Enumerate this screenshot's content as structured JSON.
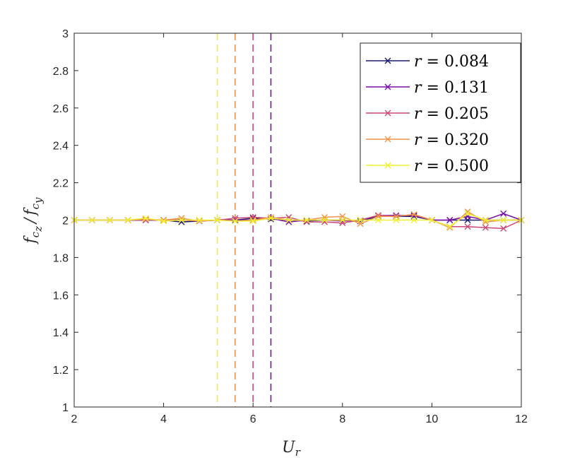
{
  "chart_data": {
    "type": "line",
    "xlabel": "U_r",
    "ylabel": "f_{c_z} / f_{c_y}",
    "xlabel_main": "U",
    "xlabel_sub": "r",
    "ylabel_f1": "f",
    "ylabel_c1": "c",
    "ylabel_s1": "z",
    "ylabel_slash": "/",
    "ylabel_f2": "f",
    "ylabel_c2": "c",
    "ylabel_s2": "y",
    "xlim": [
      2,
      12
    ],
    "ylim": [
      1,
      3
    ],
    "xticks": [
      "2",
      "4",
      "6",
      "8",
      "10",
      "12"
    ],
    "yticks": [
      "1",
      "1.2",
      "1.4",
      "1.6",
      "1.8",
      "2",
      "2.2",
      "2.4",
      "2.6",
      "2.8",
      "3"
    ],
    "legend_position": "top-right",
    "marker": "x",
    "x": [
      2.0,
      2.4,
      2.8,
      3.2,
      3.6,
      4.0,
      4.4,
      4.8,
      5.2,
      5.6,
      6.0,
      6.4,
      6.8,
      7.2,
      7.6,
      8.0,
      8.4,
      8.8,
      9.2,
      9.6,
      10.0,
      10.4,
      10.8,
      11.2,
      11.6,
      12.0
    ],
    "series": [
      {
        "name": "r = 0.084",
        "var": "r",
        "eq": " = ",
        "num": "0.084",
        "color": "#1a1a6e",
        "critical_ur": null,
        "values": [
          2.0,
          2.0,
          2.0,
          2.0,
          2.0,
          2.0,
          1.99,
          1.995,
          2.0,
          2.0,
          2.01,
          2.005,
          2.0,
          1.995,
          2.0,
          2.0,
          1.995,
          2.02,
          2.02,
          2.02,
          2.0,
          2.0,
          2.0,
          2.0,
          2.0,
          2.0
        ]
      },
      {
        "name": "r = 0.131",
        "var": "r",
        "eq": " = ",
        "num": "0.131",
        "color": "#7a0fa8",
        "critical_ur": 6.4,
        "values": [
          2.0,
          2.0,
          2.0,
          2.0,
          2.0,
          2.0,
          2.0,
          1.995,
          2.0,
          2.0,
          2.0,
          2.01,
          1.99,
          2.0,
          2.0,
          1.995,
          2.0,
          2.025,
          2.025,
          2.025,
          2.0,
          2.0,
          2.02,
          2.0,
          2.035,
          2.0
        ]
      },
      {
        "name": "r = 0.205",
        "var": "r",
        "eq": " = ",
        "num": "0.205",
        "color": "#cc4778",
        "critical_ur": 6.0,
        "values": [
          2.0,
          2.0,
          2.0,
          2.0,
          2.0,
          2.0,
          2.0,
          1.995,
          2.0,
          2.01,
          2.015,
          2.01,
          2.015,
          1.99,
          1.99,
          1.985,
          2.0,
          2.025,
          2.02,
          2.03,
          2.0,
          1.965,
          1.965,
          1.96,
          1.955,
          2.0
        ]
      },
      {
        "name": "r = 0.320",
        "var": "r",
        "eq": " = ",
        "num": "0.320",
        "color": "#f0944a",
        "critical_ur": 5.6,
        "values": [
          2.0,
          2.0,
          2.0,
          2.0,
          2.005,
          2.0,
          2.01,
          1.995,
          2.0,
          1.995,
          2.0,
          2.015,
          2.0,
          2.0,
          2.015,
          2.02,
          1.98,
          2.02,
          2.02,
          2.03,
          2.0,
          1.96,
          2.045,
          1.99,
          2.0,
          2.0
        ]
      },
      {
        "name": "r = 0.500",
        "var": "r",
        "eq": " = ",
        "num": "0.500",
        "color": "#f0f032",
        "critical_ur": 5.2,
        "values": [
          2.0,
          2.0,
          2.0,
          2.0,
          2.01,
          1.995,
          2.0,
          2.0,
          2.0,
          1.995,
          1.995,
          2.01,
          2.0,
          2.0,
          2.0,
          2.0,
          2.0,
          2.0,
          2.0,
          2.0,
          2.0,
          1.965,
          2.035,
          2.0,
          2.0,
          2.0
        ]
      }
    ]
  }
}
